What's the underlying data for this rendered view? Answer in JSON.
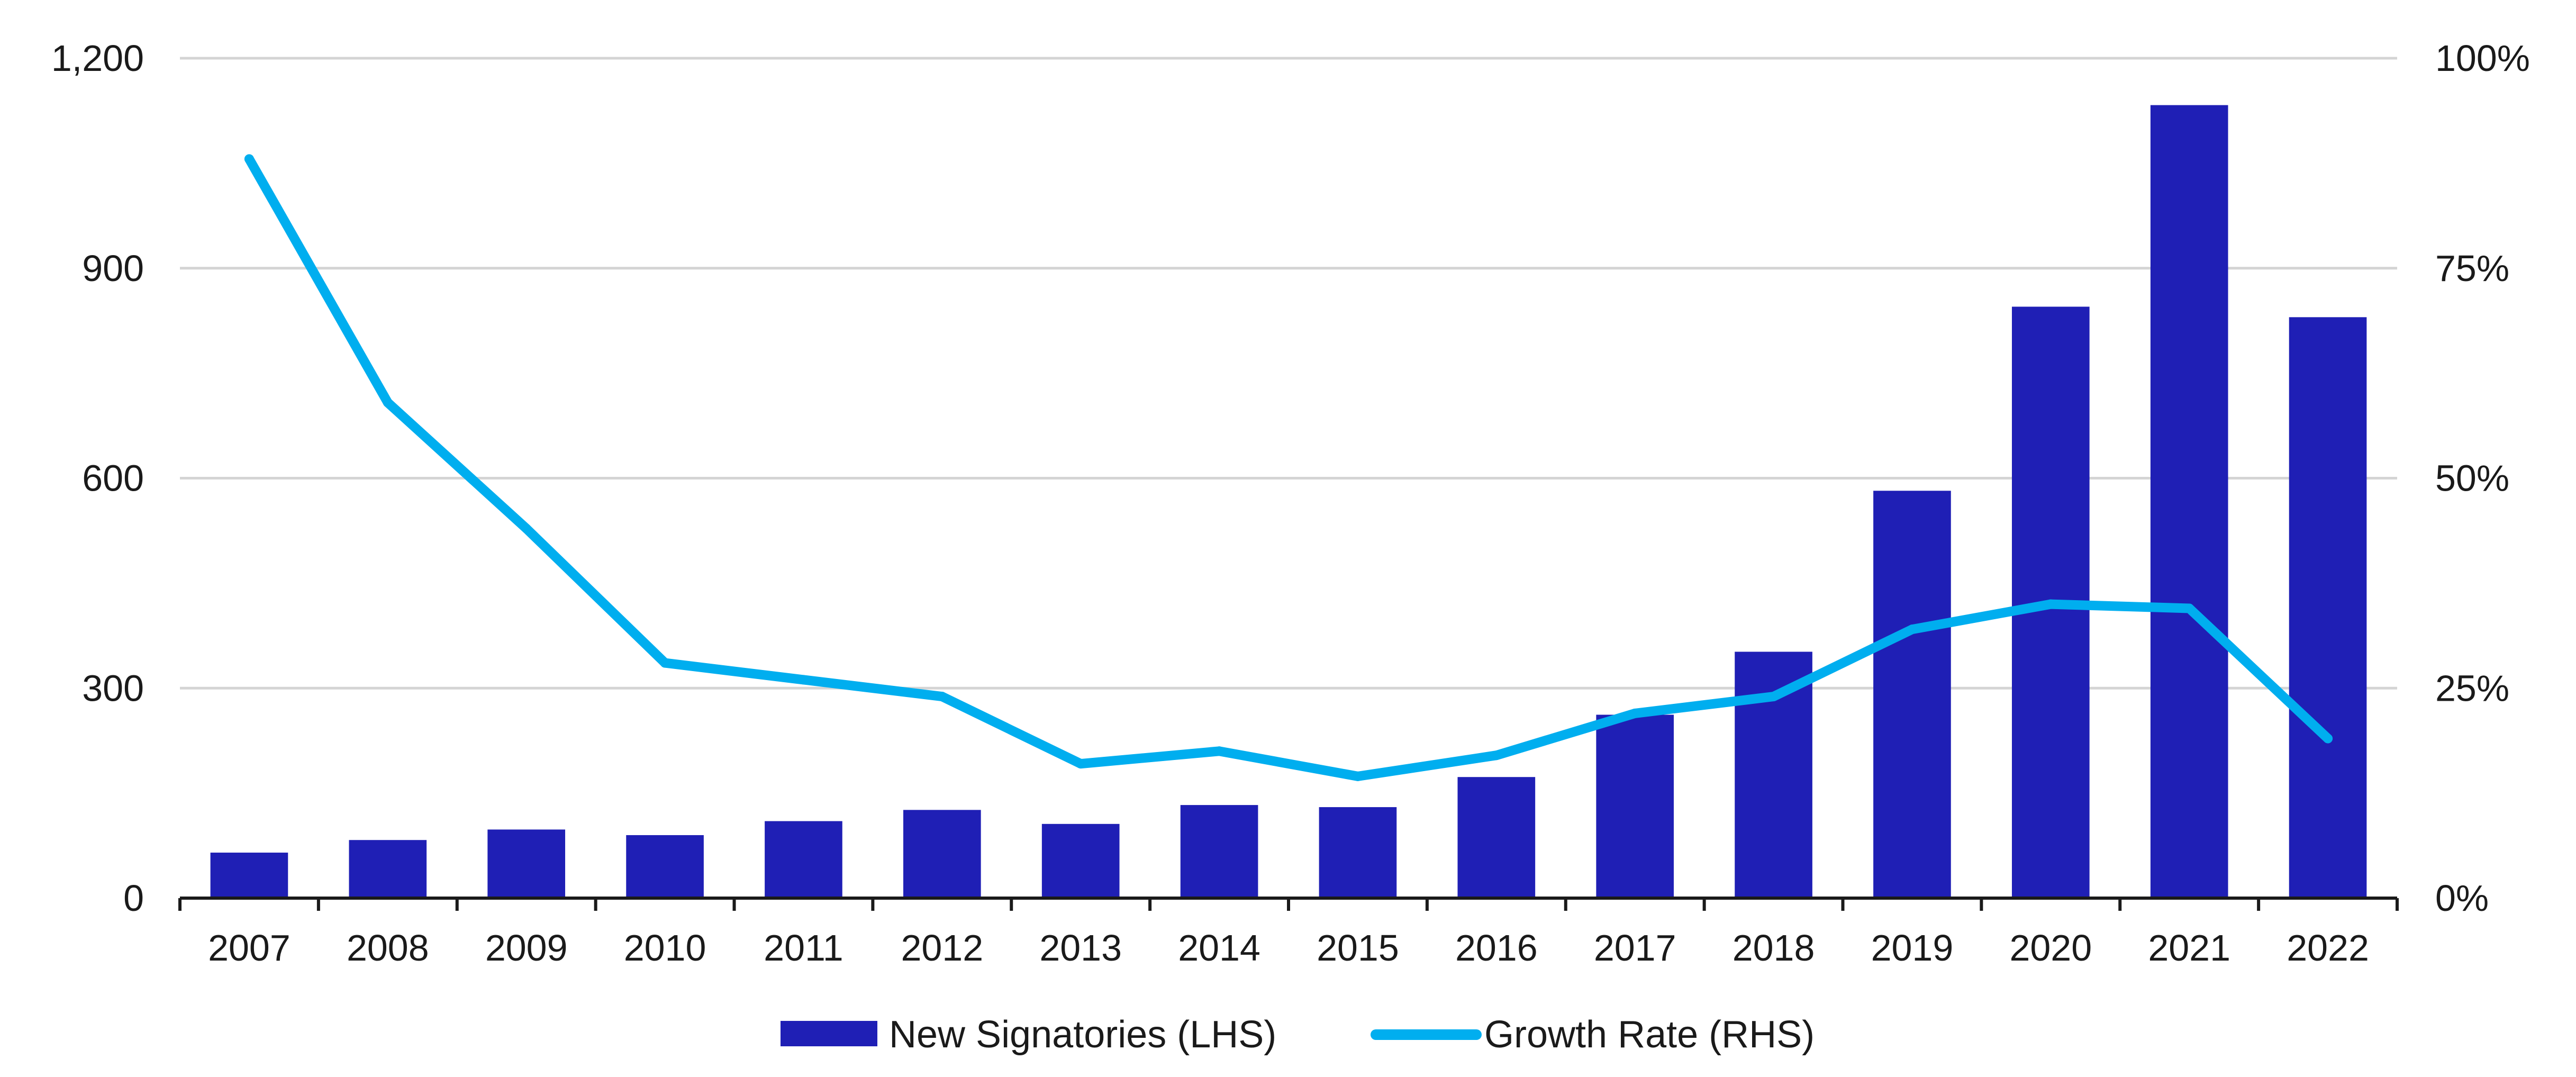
{
  "chart_data": {
    "type": "bar",
    "categories": [
      "2007",
      "2008",
      "2009",
      "2010",
      "2011",
      "2012",
      "2013",
      "2014",
      "2015",
      "2016",
      "2017",
      "2018",
      "2019",
      "2020",
      "2021",
      "2022"
    ],
    "series": [
      {
        "name": "New Signatories (LHS)",
        "type": "bar",
        "axis": "left",
        "color": "#1f1fb5",
        "values": [
          65,
          83,
          98,
          90,
          110,
          126,
          106,
          133,
          130,
          173,
          262,
          352,
          582,
          845,
          1133,
          830
        ]
      },
      {
        "name": "Growth Rate (RHS)",
        "type": "line",
        "axis": "right",
        "color": "#00aeef",
        "values": [
          88,
          59,
          44,
          28,
          26,
          24,
          16,
          17.5,
          14.5,
          17,
          22,
          24,
          32,
          35,
          34.5,
          19
        ]
      }
    ],
    "y_left": {
      "min": 0,
      "max": 1200,
      "ticks": [
        0,
        300,
        600,
        900,
        1200
      ],
      "tick_labels": [
        "0",
        "300",
        "600",
        "900",
        "1,200"
      ]
    },
    "y_right": {
      "min": 0,
      "max": 100,
      "ticks": [
        0,
        25,
        50,
        75,
        100
      ],
      "tick_labels": [
        "0%",
        "25%",
        "50%",
        "75%",
        "100%"
      ]
    },
    "grid": true,
    "legend_position": "bottom-center",
    "title": "",
    "xlabel": "",
    "ylabel": ""
  }
}
